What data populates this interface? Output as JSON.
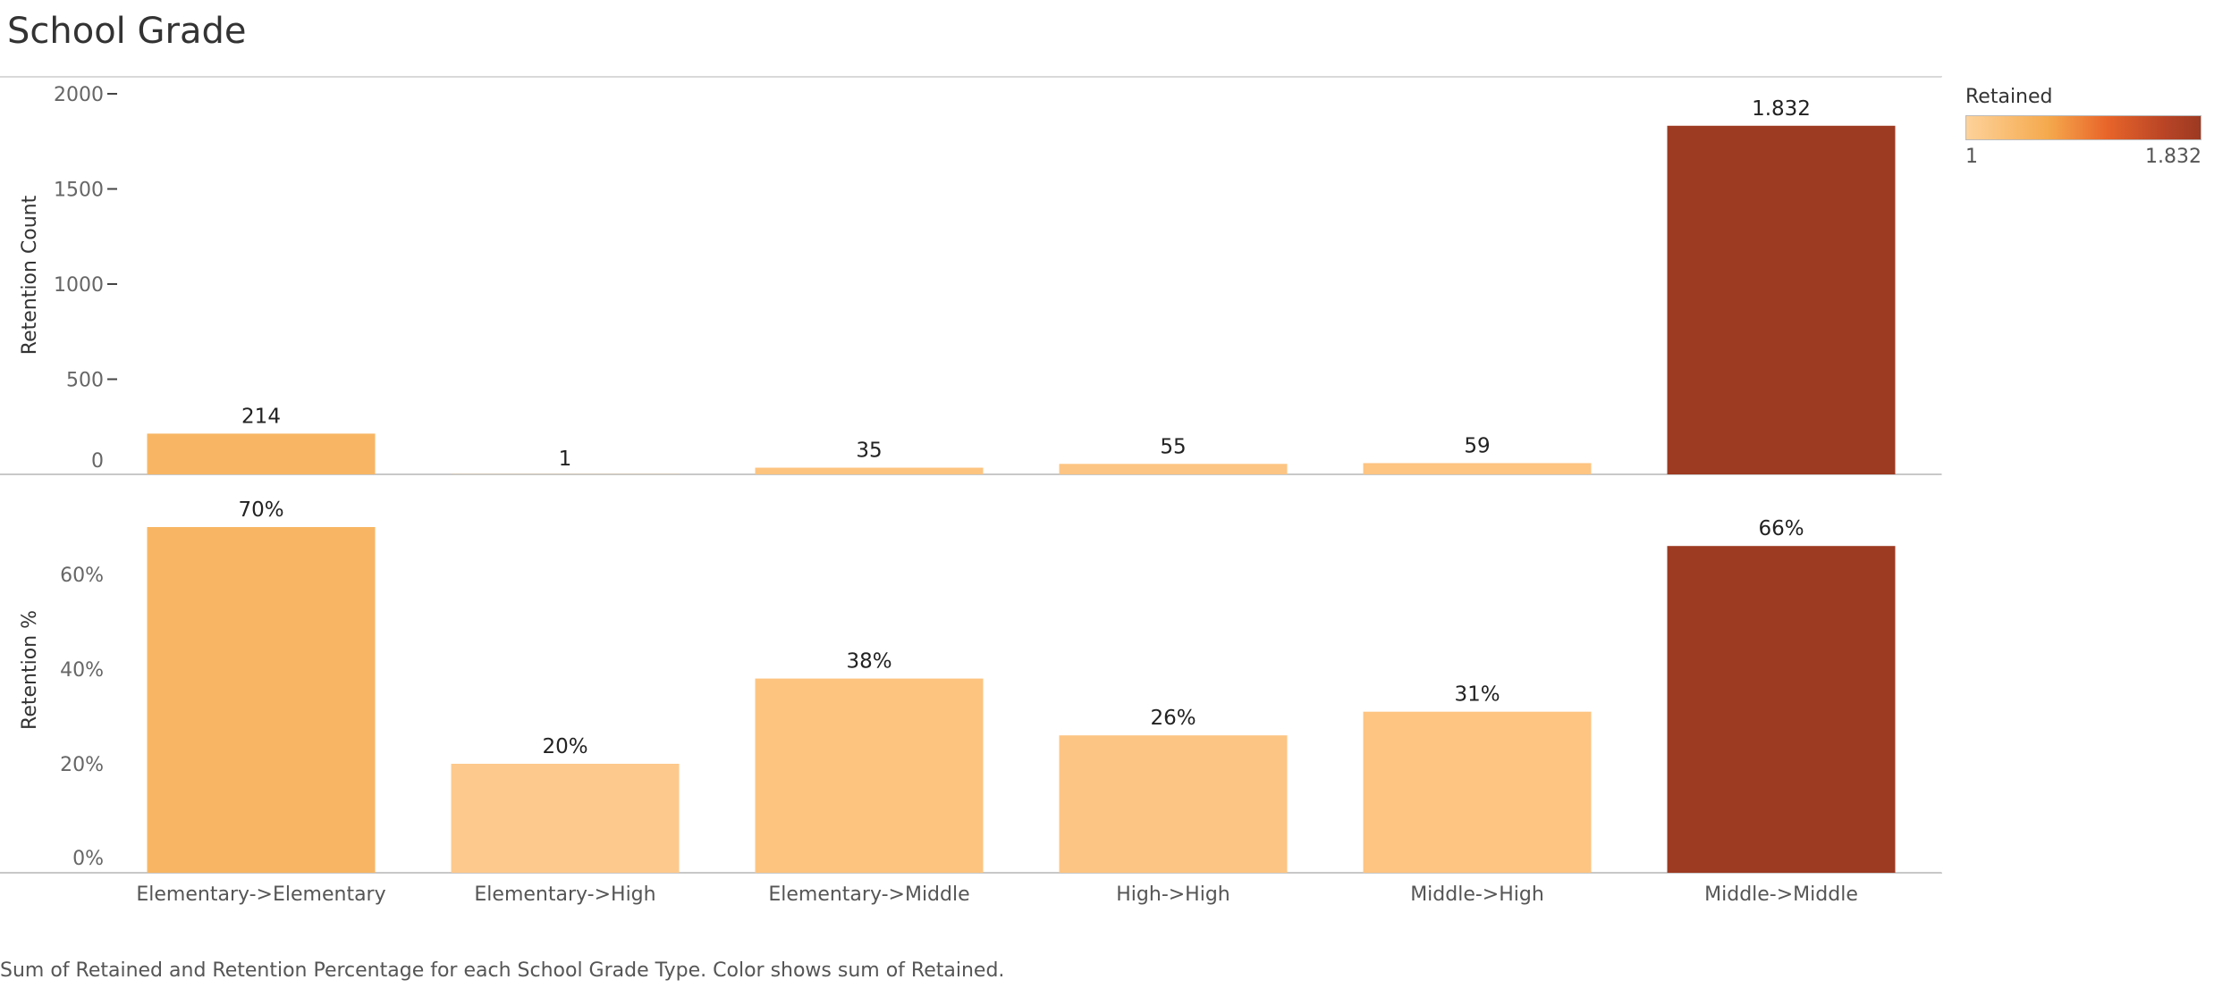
{
  "title": "School Grade",
  "footer": "Sum of Retained and Retention Percentage for each School Grade Type.  Color shows sum of Retained.",
  "legend": {
    "title": "Retained",
    "min_label": "1",
    "max_label": "1.832",
    "colors": [
      "#fdd29a",
      "#f5a94d",
      "#e8652a",
      "#b84426",
      "#9c3a22"
    ]
  },
  "chart_data": {
    "type": "bar",
    "categories": [
      "Elementary->Elementary",
      "Elementary->High",
      "Elementary->Middle",
      "High->High",
      "Middle->High",
      "Middle->Middle"
    ],
    "panels": [
      {
        "ylabel": "Retention Count",
        "values": [
          214,
          1,
          35,
          55,
          59,
          1832
        ],
        "data_labels": [
          "214",
          "1",
          "35",
          "55",
          "59",
          "1.832"
        ],
        "ylim": [
          0,
          2000
        ],
        "ticks": [
          0,
          500,
          1000,
          1500,
          2000
        ],
        "tick_labels": [
          "0",
          "500",
          "1000",
          "1500",
          "2000"
        ]
      },
      {
        "ylabel": "Retention %",
        "values": [
          70,
          20,
          38,
          26,
          31,
          66
        ],
        "data_labels": [
          "70%",
          "20%",
          "38%",
          "26%",
          "31%",
          "66%"
        ],
        "ylim": [
          0,
          70
        ],
        "ticks": [
          0,
          20,
          40,
          60
        ],
        "tick_labels": [
          "0%",
          "20%",
          "40%",
          "60%"
        ]
      }
    ],
    "bar_colors": [
      "#f8b664",
      "#fdc98c",
      "#fdc480",
      "#fdc583",
      "#fdc482",
      "#9c3a22"
    ]
  }
}
